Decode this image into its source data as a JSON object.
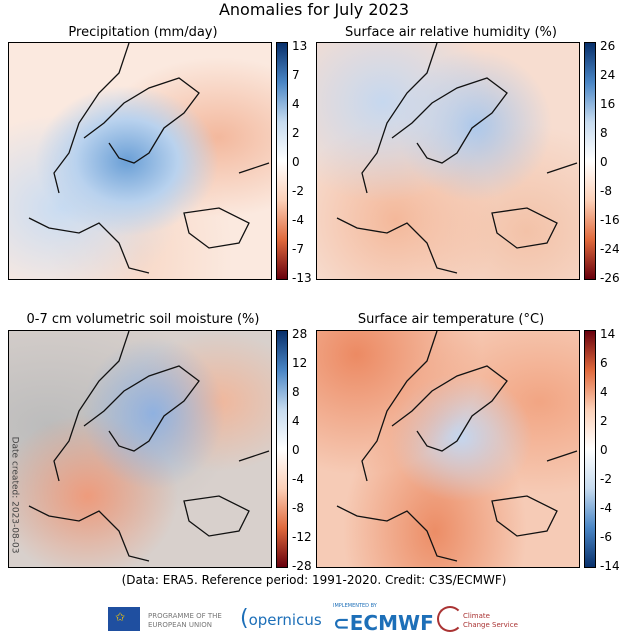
{
  "chart_data": [
    {
      "type": "heatmap",
      "title": "Precipitation (mm/day)",
      "colorbar_ticks": [
        "13",
        "7",
        "4",
        "2",
        "0",
        "-2",
        "-4",
        "-7",
        "-13"
      ],
      "colormap": "red-white-blue"
    },
    {
      "type": "heatmap",
      "title": "Surface air relative humidity (%)",
      "colorbar_ticks": [
        "26",
        "24",
        "16",
        "8",
        "0",
        "-8",
        "-16",
        "-24",
        "-26"
      ],
      "colormap": "red-white-blue"
    },
    {
      "type": "heatmap",
      "title": "0-7 cm volumetric soil moisture (%)",
      "colorbar_ticks": [
        "28",
        "12",
        "8",
        "4",
        "0",
        "-4",
        "-8",
        "-12",
        "-28"
      ],
      "colormap": "red-white-blue"
    },
    {
      "type": "heatmap",
      "title": "Surface air temperature (°C)",
      "colorbar_ticks": [
        "14",
        "6",
        "4",
        "2",
        "0",
        "-2",
        "-4",
        "-6",
        "-14"
      ],
      "colormap": "blue-white-red"
    }
  ],
  "title": "Anomalies for July 2023",
  "credit": "(Data: ERA5.  Reference period: 1991-2020.  Credit: C3S/ECMWF)",
  "date_created": "Date created: 2023-08-03",
  "logos": {
    "eu": "PROGRAMME OF THE EUROPEAN UNION",
    "copernicus": "opernicus",
    "ecmwf_small": "IMPLEMENTED BY",
    "ecmwf": "ECMWF",
    "c3s": "Climate Change Service"
  }
}
